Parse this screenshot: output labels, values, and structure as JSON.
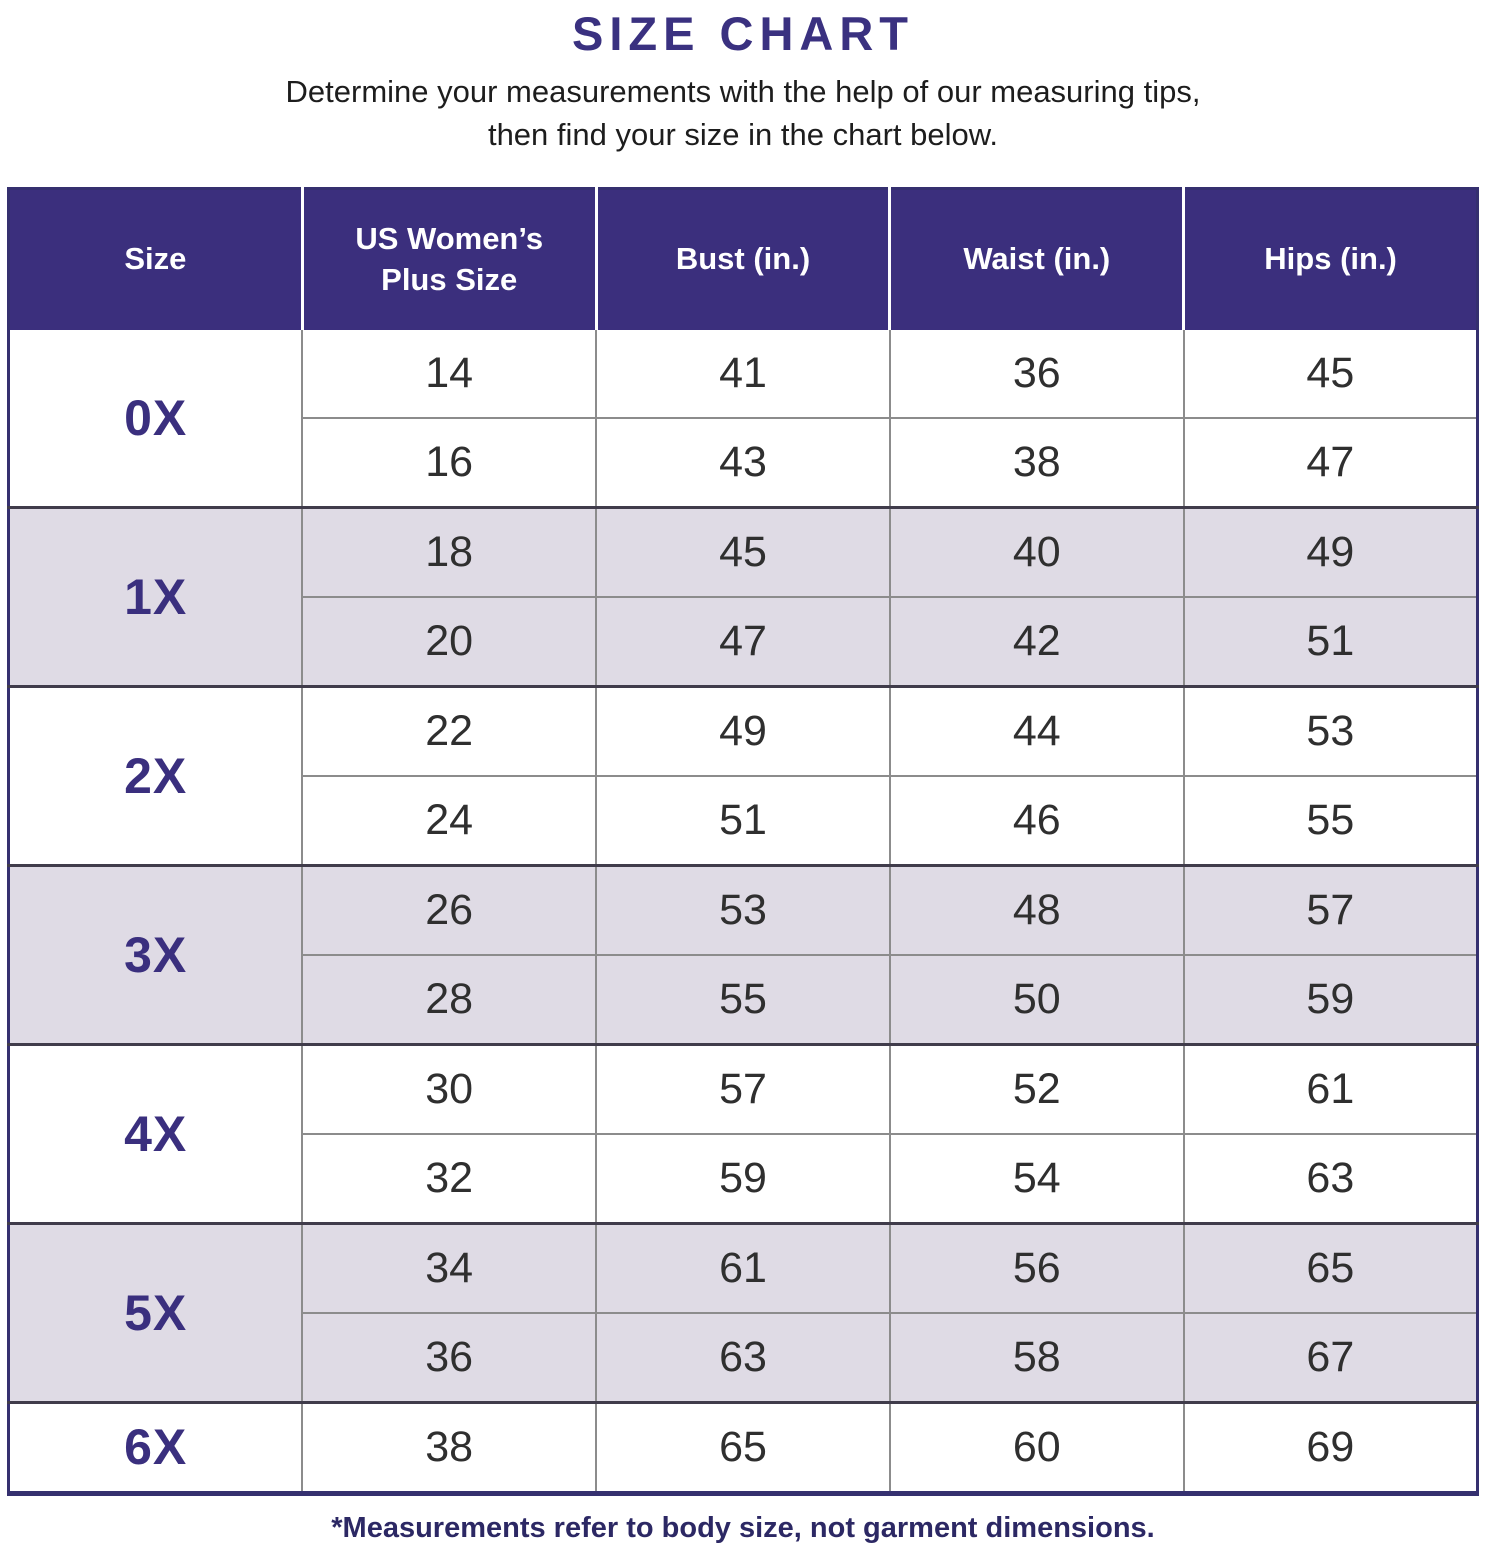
{
  "title": "SIZE CHART",
  "subtitle": {
    "line1": "Determine your measurements with the help of our measuring tips,",
    "line2": "then find your size in the chart below."
  },
  "footnote": "*Measurements refer to body size, not garment dimensions.",
  "colors": {
    "header_bg": "#3b2f7d",
    "title_text": "#3a3180",
    "size_label_text": "#3a2f7e",
    "shaded_row_bg": "#dfdbe5",
    "plain_row_bg": "#ffffff",
    "data_text": "#2f2f2f",
    "grid_line": "#8c8c8c",
    "group_divider": "#403c4b",
    "outer_border": "#35306f",
    "footnote_text": "#2c2864"
  },
  "table": {
    "columns": [
      "Size",
      "US Women’s Plus Size",
      "Bust (in.)",
      "Waist (in.)",
      "Hips (in.)"
    ],
    "groups": [
      {
        "size": "0X",
        "shaded": false,
        "rows": [
          [
            14,
            41,
            36,
            45
          ],
          [
            16,
            43,
            38,
            47
          ]
        ]
      },
      {
        "size": "1X",
        "shaded": true,
        "rows": [
          [
            18,
            45,
            40,
            49
          ],
          [
            20,
            47,
            42,
            51
          ]
        ]
      },
      {
        "size": "2X",
        "shaded": false,
        "rows": [
          [
            22,
            49,
            44,
            53
          ],
          [
            24,
            51,
            46,
            55
          ]
        ]
      },
      {
        "size": "3X",
        "shaded": true,
        "rows": [
          [
            26,
            53,
            48,
            57
          ],
          [
            28,
            55,
            50,
            59
          ]
        ]
      },
      {
        "size": "4X",
        "shaded": false,
        "rows": [
          [
            30,
            57,
            52,
            61
          ],
          [
            32,
            59,
            54,
            63
          ]
        ]
      },
      {
        "size": "5X",
        "shaded": true,
        "rows": [
          [
            34,
            61,
            56,
            65
          ],
          [
            36,
            63,
            58,
            67
          ]
        ]
      },
      {
        "size": "6X",
        "shaded": false,
        "rows": [
          [
            38,
            65,
            60,
            69
          ]
        ]
      }
    ],
    "column_keys": [
      "us-plus-size",
      "bust",
      "waist",
      "hips"
    ]
  }
}
